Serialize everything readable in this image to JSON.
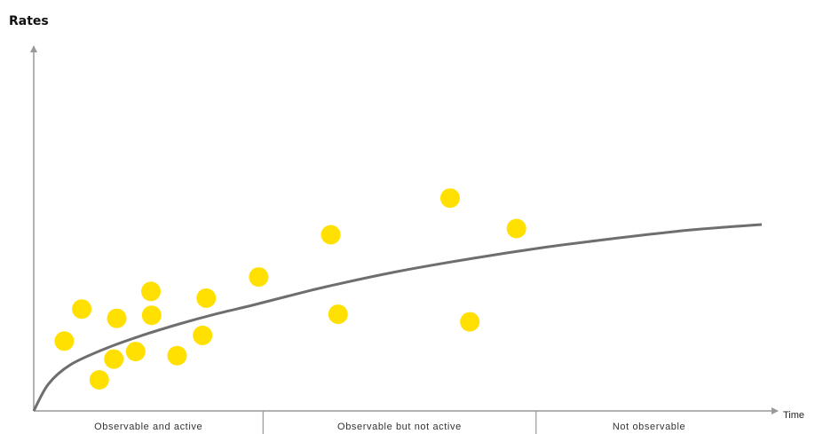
{
  "chart_data": {
    "type": "scatter",
    "title": "",
    "ylabel": "Rates",
    "xlabel": "Time",
    "grid": false,
    "xlim": [
      0,
      100
    ],
    "ylim": [
      0,
      100
    ],
    "points": {
      "color": "#ffe000",
      "x": [
        4.2,
        6.6,
        9.0,
        11.0,
        11.4,
        14.0,
        16.1,
        16.2,
        19.7,
        23.2,
        23.7,
        30.9,
        40.8,
        41.8,
        57.2,
        59.9,
        66.3
      ],
      "y": [
        22.5,
        32.8,
        10.0,
        16.7,
        29.8,
        19.1,
        38.5,
        30.8,
        17.8,
        24.3,
        36.3,
        43.1,
        56.7,
        31.1,
        68.5,
        28.7,
        58.7
      ]
    },
    "trend": {
      "color": "#6e6e6e",
      "x": [
        0,
        2,
        5,
        10,
        15,
        20,
        25,
        30,
        35,
        40,
        50,
        60,
        70,
        80,
        90,
        100
      ],
      "y": [
        0,
        8.6,
        14.8,
        20.2,
        24.4,
        28.0,
        31.2,
        34.0,
        37.0,
        39.9,
        44.9,
        49.0,
        52.6,
        55.6,
        58.2,
        60.0
      ]
    },
    "regions": [
      {
        "label": "Observable and active",
        "x_start": 0,
        "x_end": 31.5
      },
      {
        "label": "Observable but not active",
        "x_start": 31.5,
        "x_end": 69
      },
      {
        "label": "Not observable",
        "x_start": 69,
        "x_end": 100
      }
    ]
  }
}
